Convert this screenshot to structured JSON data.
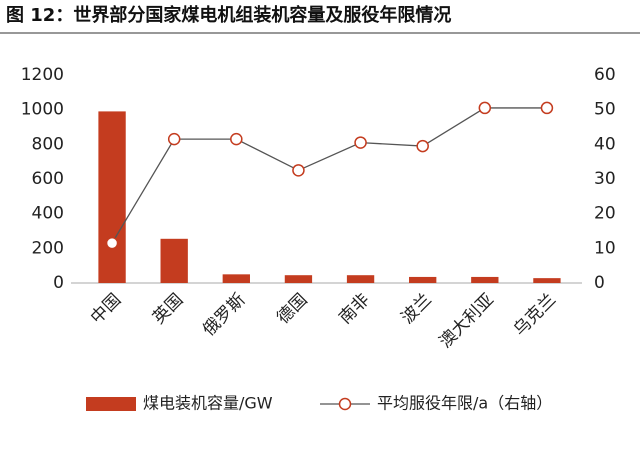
{
  "chart_data": {
    "type": "bar",
    "title": "图 12：世界部分国家煤电机组装机容量及服役年限情况",
    "categories": [
      "中国",
      "英国",
      "俄罗斯",
      "德国",
      "南非",
      "波兰",
      "澳大利亚",
      "乌克兰"
    ],
    "series": [
      {
        "name": "煤电装机容量/GW",
        "type": "bar",
        "color": "#c43c1f",
        "values": [
          990,
          255,
          50,
          45,
          45,
          35,
          35,
          28
        ]
      },
      {
        "name": "平均服役年限/a（右轴）",
        "type": "line",
        "axis": "y2",
        "color": "#c43c1f",
        "values": [
          11.5,
          41.5,
          41.5,
          32.5,
          40.5,
          39.5,
          50.5,
          50.5
        ]
      }
    ],
    "ylim": [
      0,
      1200
    ],
    "yticks": [
      0,
      200,
      400,
      600,
      800,
      1000,
      1200
    ],
    "y2lim": [
      0,
      60
    ],
    "y2ticks": [
      0,
      10,
      20,
      30,
      40,
      50,
      60
    ],
    "grid": false,
    "legend": "bottom"
  }
}
